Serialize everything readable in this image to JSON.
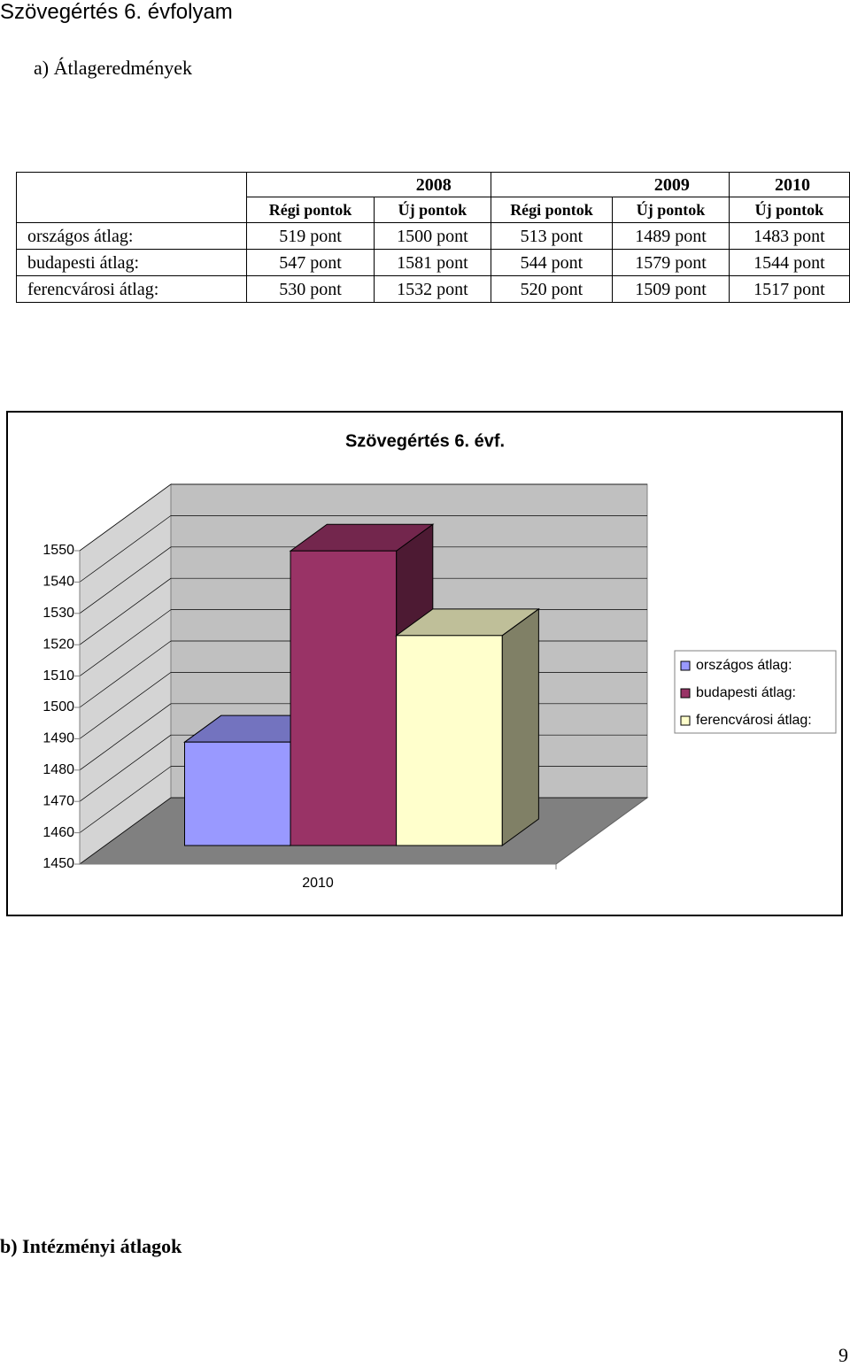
{
  "header": {
    "title": "Szövegértés 6. évfolyam"
  },
  "section_a": "a) Átlageredmények",
  "table": {
    "years": [
      "2008",
      "2009",
      "2010"
    ],
    "subheaders": [
      "Régi pontok",
      "Új pontok",
      "Régi pontok",
      "Új pontok",
      "Új pontok"
    ],
    "rows": [
      [
        "országos átlag:",
        "519 pont",
        "1500 pont",
        "513 pont",
        "1489 pont",
        "1483 pont"
      ],
      [
        "budapesti átlag:",
        "547 pont",
        "1581 pont",
        "544 pont",
        "1579 pont",
        "1544 pont"
      ],
      [
        "ferencvárosi átlag:",
        "530 pont",
        "1532 pont",
        "520 pont",
        "1509 pont",
        "1517 pont"
      ]
    ]
  },
  "chart_data": {
    "type": "bar3d",
    "title": "Szövegértés 6. évf.",
    "categories": [
      "2010"
    ],
    "series": [
      {
        "name": "országos átlag:",
        "color": "#9999ff",
        "values": [
          1483
        ]
      },
      {
        "name": "budapesti átlag:",
        "color": "#993366",
        "values": [
          1544
        ]
      },
      {
        "name": "ferencvárosi átlag:",
        "color": "#ffffcc",
        "values": [
          1517
        ]
      }
    ],
    "ylim": [
      1450,
      1550
    ],
    "yticks": [
      1450,
      1460,
      1470,
      1480,
      1490,
      1500,
      1510,
      1520,
      1530,
      1540,
      1550
    ],
    "grid": true,
    "legend": "right"
  },
  "section_b": "b) Intézményi átlagok",
  "page_number": "9"
}
